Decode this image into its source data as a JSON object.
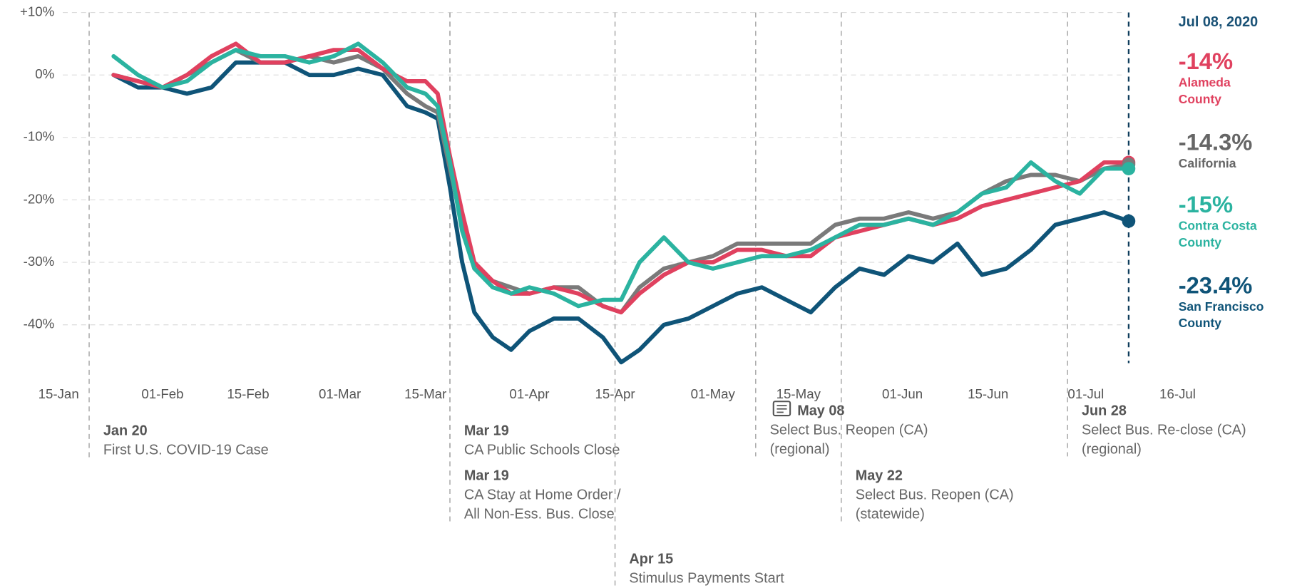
{
  "chart_data": {
    "type": "line",
    "x": [
      "2020-01-24",
      "2020-01-28",
      "2020-02-01",
      "2020-02-05",
      "2020-02-09",
      "2020-02-13",
      "2020-02-17",
      "2020-02-21",
      "2020-02-25",
      "2020-02-29",
      "2020-03-04",
      "2020-03-08",
      "2020-03-12",
      "2020-03-15",
      "2020-03-17",
      "2020-03-19",
      "2020-03-21",
      "2020-03-23",
      "2020-03-26",
      "2020-03-29",
      "2020-04-01",
      "2020-04-05",
      "2020-04-09",
      "2020-04-13",
      "2020-04-16",
      "2020-04-19",
      "2020-04-23",
      "2020-04-27",
      "2020-05-01",
      "2020-05-05",
      "2020-05-09",
      "2020-05-13",
      "2020-05-17",
      "2020-05-21",
      "2020-05-25",
      "2020-05-29",
      "2020-06-02",
      "2020-06-06",
      "2020-06-10",
      "2020-06-14",
      "2020-06-18",
      "2020-06-22",
      "2020-06-26",
      "2020-06-30",
      "2020-07-04",
      "2020-07-08"
    ],
    "series": [
      {
        "name": "Alameda County",
        "color": "#e0415f",
        "values": [
          0,
          -1,
          -2,
          0,
          3,
          5,
          2,
          2,
          3,
          4,
          4,
          1,
          -1,
          -1,
          -3,
          -13,
          -22,
          -30,
          -33,
          -35,
          -35,
          -34,
          -35,
          -37,
          -38,
          -35,
          -32,
          -30,
          -30,
          -28,
          -28,
          -29,
          -29,
          -26,
          -25,
          -24,
          -23,
          -24,
          -23,
          -21,
          -20,
          -19,
          -18,
          -17,
          -14,
          -14
        ]
      },
      {
        "name": "California",
        "color": "#7a7a7a",
        "values": [
          0,
          -1,
          -2,
          0,
          2,
          4,
          2,
          2,
          3,
          2,
          3,
          1,
          -3,
          -5,
          -6,
          -15,
          -24,
          -31,
          -33,
          -34,
          -35,
          -34,
          -34,
          -37,
          -38,
          -34,
          -31,
          -30,
          -29,
          -27,
          -27,
          -27,
          -27,
          -24,
          -23,
          -23,
          -22,
          -23,
          -22,
          -19,
          -17,
          -16,
          -16,
          -17,
          -15,
          -14.3
        ]
      },
      {
        "name": "Contra Costa County",
        "color": "#2bb3a0",
        "values": [
          3,
          0,
          -2,
          -1,
          2,
          4,
          3,
          3,
          2,
          3,
          5,
          2,
          -2,
          -3,
          -5,
          -14,
          -25,
          -31,
          -34,
          -35,
          -34,
          -35,
          -37,
          -36,
          -36,
          -30,
          -26,
          -30,
          -31,
          -30,
          -29,
          -29,
          -28,
          -26,
          -24,
          -24,
          -23,
          -24,
          -22,
          -19,
          -18,
          -14,
          -17,
          -19,
          -15,
          -15
        ]
      },
      {
        "name": "San Francisco County",
        "color": "#0f5478",
        "values": [
          0,
          -2,
          -2,
          -3,
          -2,
          2,
          2,
          2,
          0,
          0,
          1,
          0,
          -5,
          -6,
          -7,
          -18,
          -30,
          -38,
          -42,
          -44,
          -41,
          -39,
          -39,
          -42,
          -46,
          -44,
          -40,
          -39,
          -37,
          -35,
          -34,
          -36,
          -38,
          -34,
          -31,
          -32,
          -29,
          -30,
          -27,
          -32,
          -31,
          -28,
          -24,
          -23,
          -22,
          -23.4
        ]
      }
    ],
    "xlim": [
      "2020-01-15",
      "2020-07-16"
    ],
    "xticks": [
      {
        "value": "2020-01-15",
        "label": "15-Jan"
      },
      {
        "value": "2020-02-01",
        "label": "01-Feb"
      },
      {
        "value": "2020-02-15",
        "label": "15-Feb"
      },
      {
        "value": "2020-03-01",
        "label": "01-Mar"
      },
      {
        "value": "2020-03-15",
        "label": "15-Mar"
      },
      {
        "value": "2020-04-01",
        "label": "01-Apr"
      },
      {
        "value": "2020-04-15",
        "label": "15-Apr"
      },
      {
        "value": "2020-05-01",
        "label": "01-May"
      },
      {
        "value": "2020-05-15",
        "label": "15-May"
      },
      {
        "value": "2020-06-01",
        "label": "01-Jun"
      },
      {
        "value": "2020-06-15",
        "label": "15-Jun"
      },
      {
        "value": "2020-07-01",
        "label": "01-Jul"
      },
      {
        "value": "2020-07-16",
        "label": "16-Jul"
      }
    ],
    "ylim": [
      -48,
      10
    ],
    "yticks": [
      {
        "value": -40,
        "label": "-40%"
      },
      {
        "value": -30,
        "label": "-30%"
      },
      {
        "value": -20,
        "label": "-20%"
      },
      {
        "value": -10,
        "label": "-10%"
      },
      {
        "value": 0,
        "label": "0%"
      },
      {
        "value": 10,
        "label": "+10%"
      }
    ],
    "grid": true,
    "current": {
      "date": "2020-07-08",
      "date_label": "Jul 08, 2020",
      "values": [
        -14,
        -14.3,
        -15,
        -23.4
      ],
      "value_labels": [
        "-14%",
        "-14.3%",
        "-15%",
        "-23.4%"
      ]
    },
    "annotations": [
      {
        "date": "2020-01-20",
        "label": "Jan 20",
        "text": [
          "First U.S. COVID-19 Case"
        ]
      },
      {
        "date": "2020-03-19",
        "label": "Mar 19",
        "text": [
          "CA Public Schools Close"
        ]
      },
      {
        "date": "2020-03-19",
        "label": "Mar 19",
        "text": [
          "CA Stay at Home Order /",
          "All Non-Ess. Bus. Close"
        ]
      },
      {
        "date": "2020-04-15",
        "label": "Apr 15",
        "text": [
          "Stimulus Payments Start"
        ]
      },
      {
        "date": "2020-05-08",
        "label": "May 08",
        "text": [
          "Select Bus. Reopen (CA)",
          "(regional)"
        ]
      },
      {
        "date": "2020-05-22",
        "label": "May 22",
        "text": [
          "Select Bus. Reopen (CA)",
          "(statewide)"
        ]
      },
      {
        "date": "2020-06-28",
        "label": "Jun 28",
        "text": [
          "Select Bus. Re-close (CA)",
          "(regional)"
        ]
      }
    ]
  }
}
